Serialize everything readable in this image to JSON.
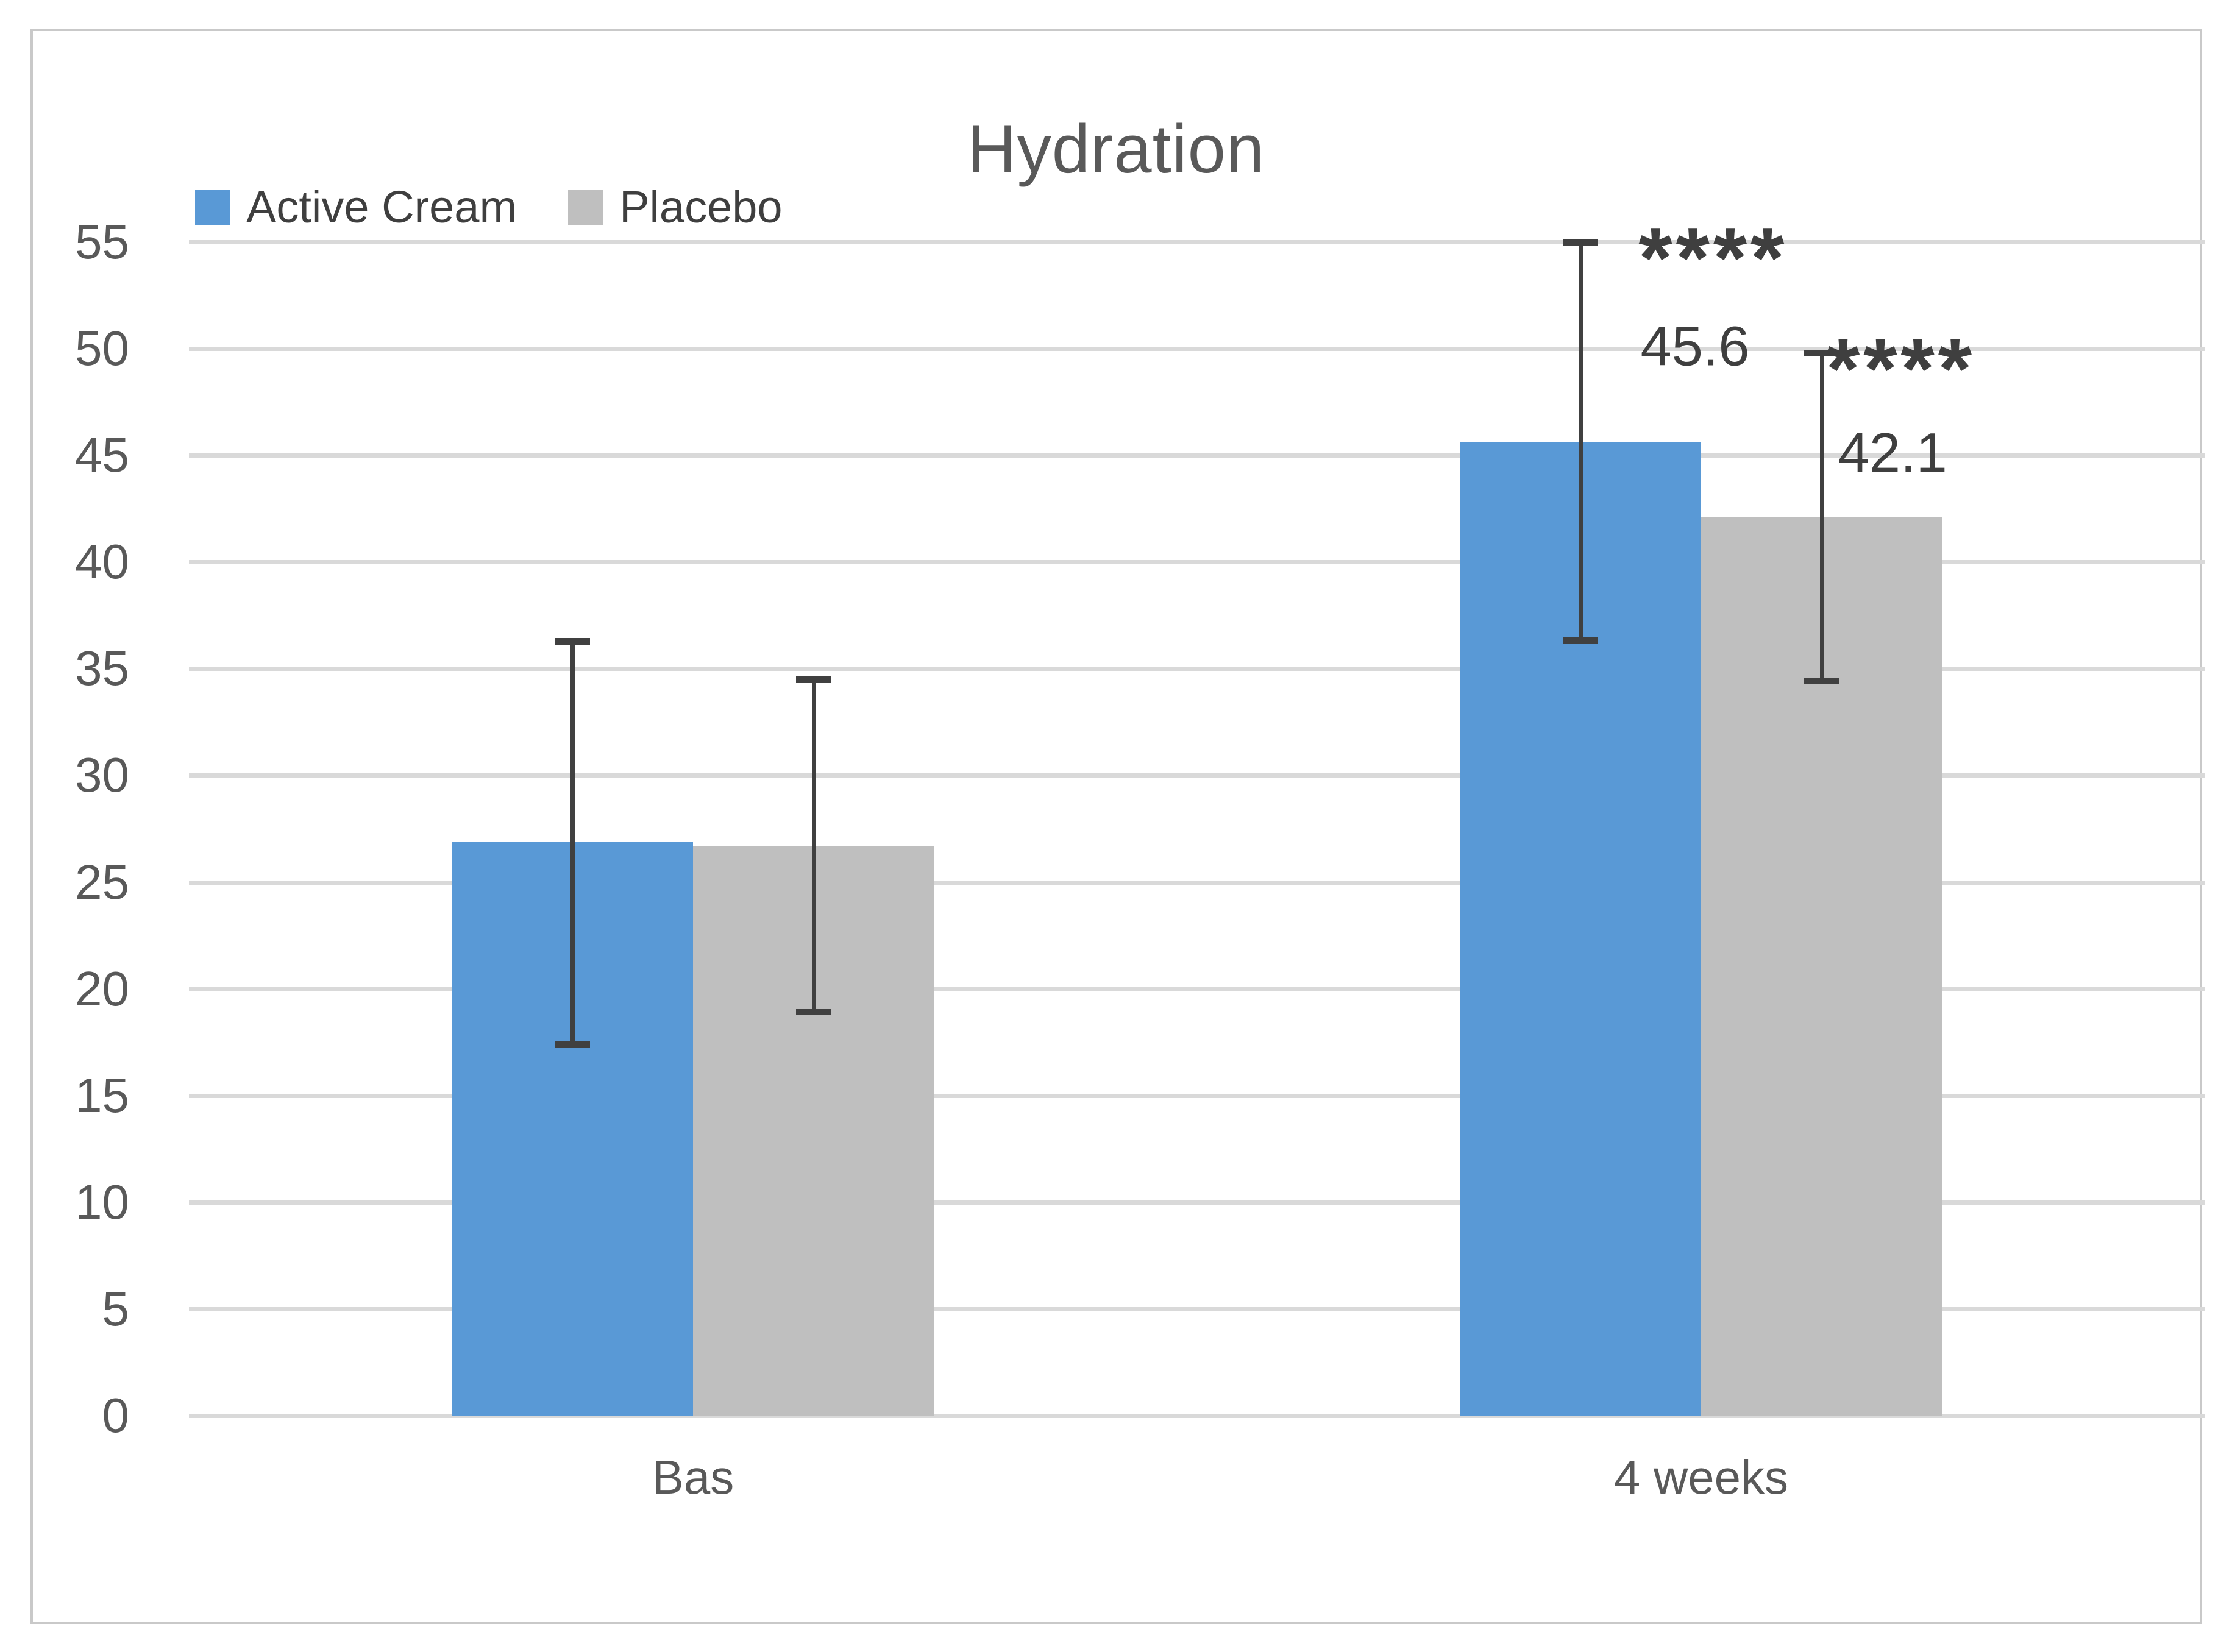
{
  "chart_data": {
    "type": "bar",
    "title": "Hydration",
    "categories": [
      "Bas",
      "4 weeks"
    ],
    "series": [
      {
        "name": "Active Cream",
        "color": "#5999d6",
        "values": [
          26.9,
          45.6
        ],
        "error_low": [
          17.4,
          36.3
        ],
        "error_high": [
          36.3,
          55.0
        ]
      },
      {
        "name": "Placebo",
        "color": "#bfbfbf",
        "values": [
          26.7,
          42.1
        ],
        "error_low": [
          18.9,
          34.4
        ],
        "error_high": [
          34.5,
          49.8
        ]
      }
    ],
    "ylim": [
      0,
      55
    ],
    "yticks": [
      0,
      5,
      10,
      15,
      20,
      25,
      30,
      35,
      40,
      45,
      50,
      55
    ],
    "grid": "horizontal",
    "legend_position": "top-left",
    "data_labels_shown": [
      "45.6",
      "42.1"
    ],
    "annotations": [
      {
        "text": "****",
        "kind": "star",
        "x_pct": 75.6,
        "y_value": 54.9
      },
      {
        "text": "45.6",
        "kind": "number",
        "x_pct": 74.7,
        "y_value": 50.1
      },
      {
        "text": "****",
        "kind": "star",
        "x_pct": 84.9,
        "y_value": 49.7
      },
      {
        "text": "42.1",
        "kind": "number",
        "x_pct": 84.5,
        "y_value": 45.1
      }
    ],
    "colors": {
      "gridline": "#d9d9d9",
      "axis_text": "#595959",
      "error_bar": "#404040",
      "annotation_text": "#3f3f3f",
      "frame_border": "#c9c9c9",
      "background": "#ffffff"
    }
  }
}
